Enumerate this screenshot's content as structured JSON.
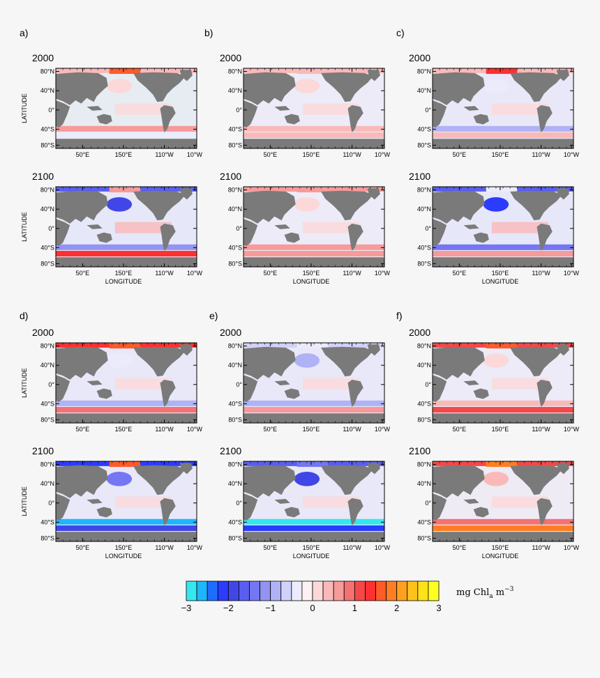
{
  "figure": {
    "longitude_ticks": [
      "50°E",
      "150°E",
      "110°W",
      "10°W"
    ],
    "latitude_ticks": [
      "80°N",
      "40°N",
      "0°",
      "40°S",
      "80°S"
    ],
    "xlabel": "LONGITUDE",
    "ylabel": "LATITUDE",
    "year_labels": [
      "2000",
      "2100"
    ]
  },
  "colorbar": {
    "unit_text": "mg Chl",
    "unit_sub": "a",
    "unit_tail": " m",
    "unit_sup": "−3",
    "tick_labels": [
      "−3",
      "−2",
      "−1",
      "0",
      "1",
      "2",
      "3"
    ],
    "colors": [
      "#35e8f0",
      "#1fb6ff",
      "#1f6dff",
      "#2b3cff",
      "#4146e6",
      "#5a5ef0",
      "#7476f2",
      "#9194f3",
      "#b0b2f6",
      "#d0d2f9",
      "#ecebfb",
      "#fdf1f1",
      "#fcd8d8",
      "#fab9b9",
      "#f79a9a",
      "#f57272",
      "#f44848",
      "#ff3030",
      "#ff5a2a",
      "#ff7e23",
      "#ffa01f",
      "#ffc21a",
      "#ffe218",
      "#ffff22"
    ]
  },
  "chart_data": [
    {
      "type": "heatmap",
      "panel": "a)",
      "year": "2000",
      "row": 0,
      "col": 0,
      "ocean": "#e6ecf2",
      "arctic": 0.4,
      "arctic_patch": 1.6,
      "north_pac": 0.0,
      "equator": 0.2,
      "south_band": 0.5,
      "southern": -0.3
    },
    {
      "type": "heatmap",
      "panel": "a)",
      "year": "2100",
      "row": 1,
      "col": 0,
      "ocean": "#e6e7f8",
      "arctic": -1.6,
      "arctic_patch": 0.6,
      "north_pac": -2.0,
      "equator": 0.4,
      "south_band": -1.2,
      "southern": 1.4
    },
    {
      "type": "heatmap",
      "panel": "b)",
      "year": "2000",
      "row": 0,
      "col": 1,
      "ocean": "#ecebf7",
      "arctic": 0.4,
      "arctic_patch": 0.4,
      "north_pac": 0.1,
      "equator": 0.1,
      "south_band": 0.3,
      "southern": 0.3
    },
    {
      "type": "heatmap",
      "panel": "b)",
      "year": "2100",
      "row": 1,
      "col": 1,
      "ocean": "#ecebf7",
      "arctic": 0.5,
      "arctic_patch": 0.5,
      "north_pac": 0.0,
      "equator": 0.2,
      "south_band": 0.5,
      "southern": 0.6
    },
    {
      "type": "heatmap",
      "panel": "c)",
      "year": "2000",
      "row": 0,
      "col": 2,
      "ocean": "#e8e8f8",
      "arctic": 0.3,
      "arctic_patch": 1.4,
      "north_pac": -0.3,
      "equator": 0.1,
      "south_band": -0.8,
      "southern": 0.4
    },
    {
      "type": "heatmap",
      "panel": "c)",
      "year": "2100",
      "row": 1,
      "col": 2,
      "ocean": "#e6e7f8",
      "arctic": -1.6,
      "arctic_patch": -0.4,
      "north_pac": -2.2,
      "equator": 0.3,
      "south_band": -1.5,
      "southern": 0.6
    },
    {
      "type": "heatmap",
      "panel": "d)",
      "year": "2000",
      "row": 0,
      "col": 0,
      "ocean": "#e8e8f8",
      "arctic": 1.4,
      "arctic_patch": 1.7,
      "north_pac": -0.5,
      "equator": 0.0,
      "south_band": -0.9,
      "southern": 0.8
    },
    {
      "type": "heatmap",
      "panel": "d)",
      "year": "2100",
      "row": 1,
      "col": 0,
      "ocean": "#e8e8f8",
      "arctic": -2.2,
      "arctic_patch": 1.6,
      "north_pac": -1.4,
      "equator": 0.0,
      "south_band": -2.7,
      "southern": -2.0
    },
    {
      "type": "heatmap",
      "panel": "e)",
      "year": "2000",
      "row": 0,
      "col": 1,
      "ocean": "#e8e8f8",
      "arctic": -0.6,
      "arctic_patch": -0.3,
      "north_pac": -1.0,
      "equator": 0.0,
      "south_band": -0.9,
      "southern": 0.6
    },
    {
      "type": "heatmap",
      "panel": "e)",
      "year": "2100",
      "row": 1,
      "col": 1,
      "ocean": "#e8e8f8",
      "arctic": -1.6,
      "arctic_patch": -1.4,
      "north_pac": -1.8,
      "equator": 0.0,
      "south_band": -2.8,
      "southern": -2.2
    },
    {
      "type": "heatmap",
      "panel": "f)",
      "year": "2000",
      "row": 0,
      "col": 2,
      "ocean": "#ecebf7",
      "arctic": 1.2,
      "arctic_patch": 1.5,
      "north_pac": 0.2,
      "equator": 0.1,
      "south_band": 0.3,
      "southern": 1.2
    },
    {
      "type": "heatmap",
      "panel": "f)",
      "year": "2100",
      "row": 1,
      "col": 2,
      "ocean": "#eeebf5",
      "arctic": 1.0,
      "arctic_patch": 1.8,
      "north_pac": 0.3,
      "equator": 0.1,
      "south_band": 0.9,
      "southern": 1.8
    }
  ]
}
